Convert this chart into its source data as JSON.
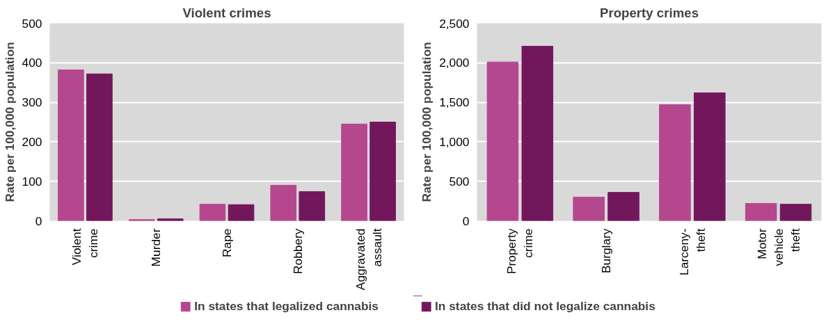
{
  "chart_data": [
    {
      "type": "bar",
      "title": "Violent crimes",
      "ylabel": "Rate per 100,000 population",
      "categories": [
        "Violent crime",
        "Murder",
        "Rape",
        "Robbery",
        "Aggravated assault"
      ],
      "series": [
        {
          "name": "In states that legalized cannabis",
          "color": "#b5478f",
          "values": [
            382,
            3,
            42,
            90,
            245
          ]
        },
        {
          "name": "In states that did not legalize cannabis",
          "color": "#73175d",
          "values": [
            372,
            5,
            41,
            74,
            250
          ]
        }
      ],
      "ylim": [
        0,
        500
      ],
      "yticks": [
        0,
        100,
        200,
        300,
        400,
        500
      ],
      "grid": "y",
      "legend": "bottom"
    },
    {
      "type": "bar",
      "title": "Property crimes",
      "ylabel": "Rate per 100,000 population",
      "categories": [
        "Property crime",
        "Burglary",
        "Larceny-theft",
        "Motor vehicle theft"
      ],
      "series": [
        {
          "color": "#b5478f",
          "values": [
            2010,
            300,
            1470,
            220
          ]
        },
        {
          "color": "#73175d",
          "values": [
            2210,
            360,
            1620,
            210
          ]
        }
      ],
      "ylim": [
        0,
        2500
      ],
      "yticks": [
        0,
        {
          "value": 500,
          "label": "500"
        },
        {
          "value": 1000,
          "label": "1,000"
        },
        {
          "value": 1500,
          "label": "1,500"
        },
        {
          "value": 2000,
          "label": "2,000"
        },
        {
          "value": 2500,
          "label": "2,500"
        }
      ],
      "grid": "y"
    }
  ]
}
